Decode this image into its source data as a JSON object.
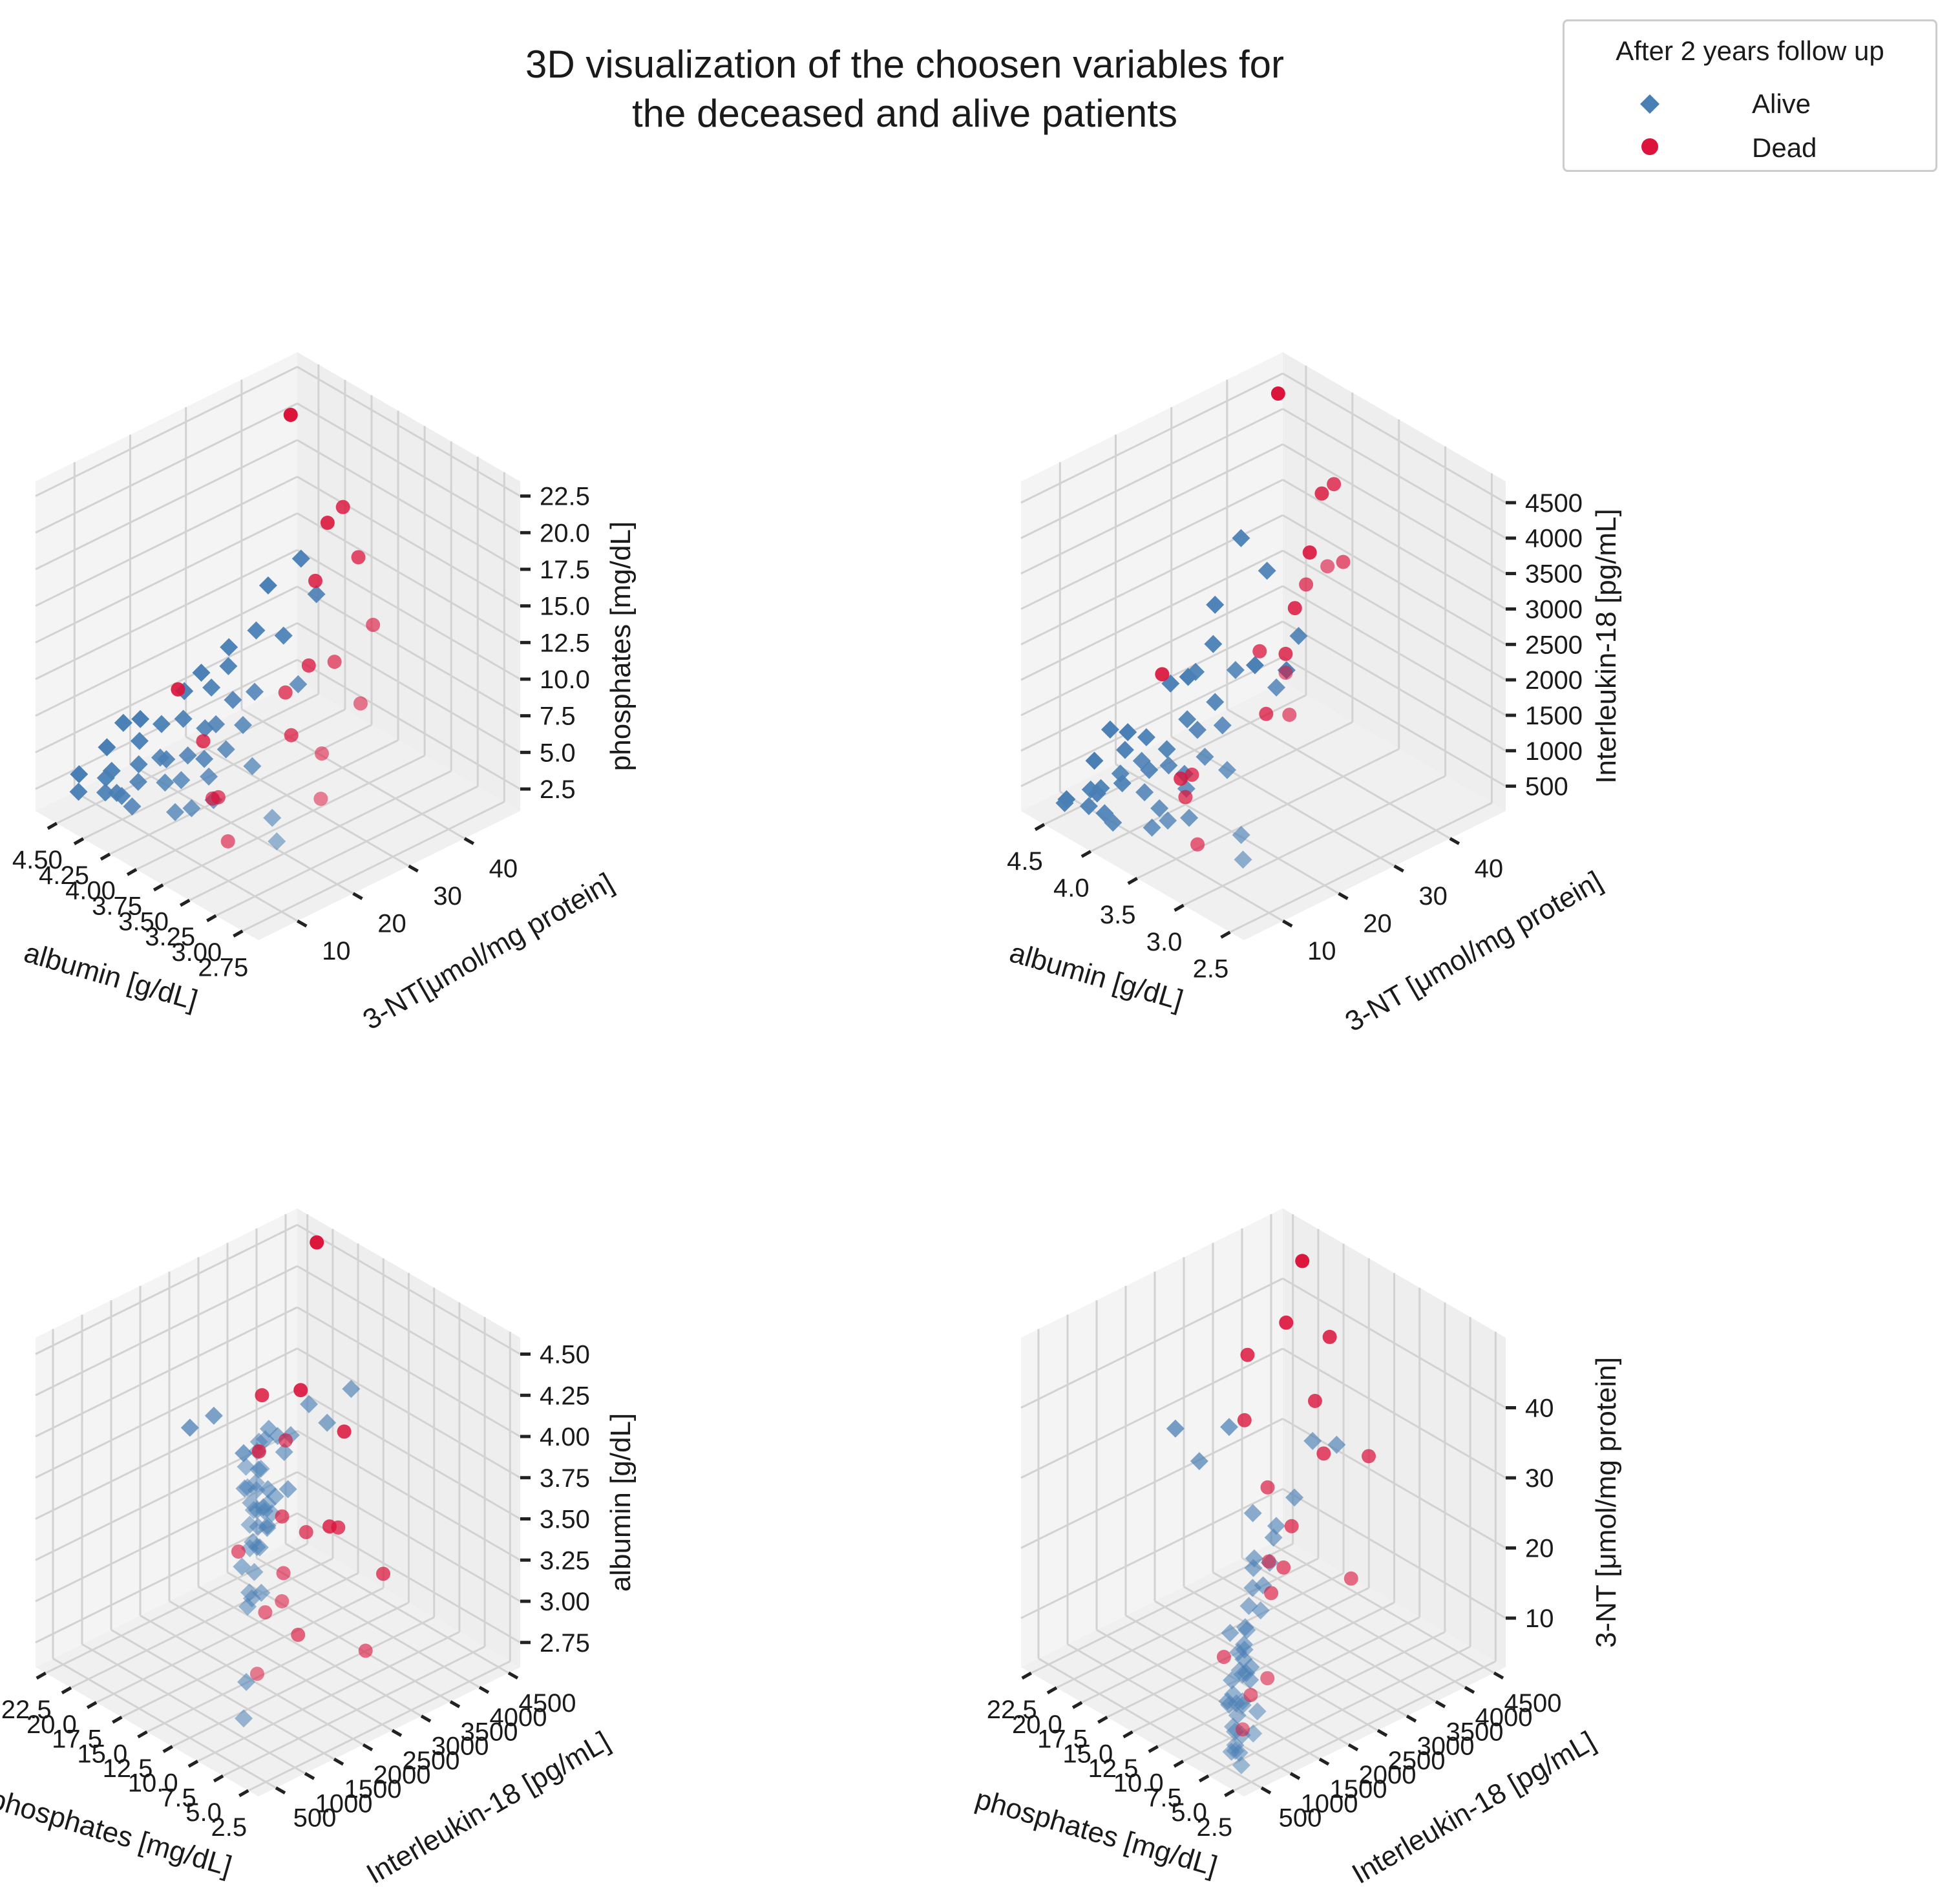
{
  "figure": {
    "title_lines": [
      "3D visualization of the choosen variables for",
      "the deceased and alive patients"
    ]
  },
  "legend": {
    "title": "After 2 years follow up",
    "entries": [
      {
        "label": "Alive",
        "marker": "diamond",
        "color": "#4a7fb5"
      },
      {
        "label": "Dead",
        "marker": "circle",
        "color": "#dc143c"
      }
    ]
  },
  "colors": {
    "alive": "#4a7fb5",
    "dead": "#dc143c",
    "grid": "#d2d2d2",
    "pane": "#f2f2f2"
  },
  "chart_data": [
    {
      "type": "scatter3d",
      "xlabel": "albumin [g/dL]",
      "ylabel": "3-NT[μmol/mg protein]",
      "zlabel": "phosphates [mg/dL]",
      "xlim": [
        2.6,
        4.7
      ],
      "ylim": [
        3,
        50
      ],
      "zlim": [
        1,
        23.5
      ],
      "xticks": [
        2.75,
        3.0,
        3.25,
        3.5,
        3.75,
        4.0,
        4.25,
        4.5
      ],
      "xtick_labels": [
        "2.75",
        "3.00",
        "3.25",
        "3.50",
        "3.75",
        "4.00",
        "4.25",
        "4.50"
      ],
      "yticks": [
        10,
        20,
        30,
        40
      ],
      "ytick_labels": [
        "10",
        "20",
        "30",
        "40"
      ],
      "zticks": [
        2.5,
        5,
        7.5,
        10,
        12.5,
        15,
        17.5,
        20,
        22.5
      ],
      "ztick_labels": [
        "2.5",
        "5.0",
        "7.5",
        "10.0",
        "12.5",
        "15.0",
        "17.5",
        "20.0",
        "22.5"
      ]
    },
    {
      "type": "scatter3d",
      "xlabel": "albumin [g/dL]",
      "ylabel": "3-NT [μmol/mg protein]",
      "zlabel": "Interleukin-18 [pg/mL]",
      "xlim": [
        2.35,
        4.75
      ],
      "ylim": [
        3,
        50
      ],
      "zlim": [
        150,
        4800
      ],
      "xticks": [
        2.5,
        3.0,
        3.5,
        4.0,
        4.5
      ],
      "xtick_labels": [
        "2.5",
        "3.0",
        "3.5",
        "4.0",
        "4.5"
      ],
      "yticks": [
        10,
        20,
        30,
        40
      ],
      "ytick_labels": [
        "10",
        "20",
        "30",
        "40"
      ],
      "zticks": [
        500,
        1000,
        1500,
        2000,
        2500,
        3000,
        3500,
        4000,
        4500
      ],
      "ztick_labels": [
        "500",
        "1000",
        "1500",
        "2000",
        "2500",
        "3000",
        "3500",
        "4000",
        "4500"
      ]
    },
    {
      "type": "scatter3d",
      "xlabel": "phosphates [mg/dL]",
      "ylabel": "Interleukin-18 [pg/mL]",
      "zlabel": "albumin [g/dL]",
      "xlim": [
        1.5,
        23.5
      ],
      "ylim": [
        200,
        4700
      ],
      "zlim": [
        2.6,
        4.6
      ],
      "xticks": [
        2.5,
        5,
        7.5,
        10,
        12.5,
        15,
        17.5,
        20,
        22.5
      ],
      "xtick_labels": [
        "2.5",
        "5.0",
        "7.5",
        "10.0",
        "12.5",
        "15.0",
        "17.5",
        "20.0",
        "22.5"
      ],
      "yticks": [
        500,
        1000,
        1500,
        2000,
        2500,
        3000,
        3500,
        4000,
        4500
      ],
      "ytick_labels": [
        "500",
        "1000",
        "1500",
        "2000",
        "2500",
        "3000",
        "3500",
        "4000",
        "4500"
      ],
      "zticks": [
        2.75,
        3.0,
        3.25,
        3.5,
        3.75,
        4.0,
        4.25,
        4.5
      ],
      "ztick_labels": [
        "2.75",
        "3.00",
        "3.25",
        "3.50",
        "3.75",
        "4.00",
        "4.25",
        "4.50"
      ]
    },
    {
      "type": "scatter3d",
      "xlabel": "phosphates [mg/dL]",
      "ylabel": "Interleukin-18 [pg/mL]",
      "zlabel": "3-NT [μmol/mg protein]",
      "xlim": [
        1.5,
        23.5
      ],
      "ylim": [
        200,
        4700
      ],
      "zlim": [
        3,
        50
      ],
      "xticks": [
        2.5,
        5,
        7.5,
        10,
        12.5,
        15,
        17.5,
        20,
        22.5
      ],
      "xtick_labels": [
        "2.5",
        "5.0",
        "7.5",
        "10.0",
        "12.5",
        "15.0",
        "17.5",
        "20.0",
        "22.5"
      ],
      "yticks": [
        500,
        1000,
        1500,
        2000,
        2500,
        3000,
        3500,
        4000,
        4500
      ],
      "ytick_labels": [
        "500",
        "1000",
        "1500",
        "2000",
        "2500",
        "3000",
        "3500",
        "4000",
        "4500"
      ],
      "zticks": [
        10,
        20,
        30,
        40
      ],
      "ztick_labels": [
        "10",
        "20",
        "30",
        "40"
      ]
    }
  ],
  "patients": {
    "fields": [
      "albumin_g_dL",
      "nt3_umol_mg_protein",
      "phosphates_mg_dL",
      "interleukin18_pg_mL"
    ],
    "alive": [
      [
        4.4,
        5,
        3.2,
        450
      ],
      [
        4.3,
        8,
        4.0,
        600
      ],
      [
        4.2,
        6,
        3.8,
        520
      ],
      [
        4.5,
        12,
        4.5,
        700
      ],
      [
        4.1,
        10,
        4.2,
        900
      ],
      [
        4.0,
        7,
        3.5,
        400
      ],
      [
        4.35,
        15,
        5.0,
        850
      ],
      [
        4.25,
        9,
        3.0,
        620
      ],
      [
        3.9,
        11,
        4.8,
        750
      ],
      [
        4.05,
        13,
        5.5,
        1000
      ],
      [
        4.45,
        14,
        6.0,
        1100
      ],
      [
        4.15,
        16,
        4.4,
        680
      ],
      [
        3.8,
        12,
        5.2,
        560
      ],
      [
        4.3,
        18,
        5.8,
        950
      ],
      [
        4.2,
        20,
        6.2,
        780
      ],
      [
        3.7,
        9,
        4.0,
        480
      ],
      [
        4.5,
        7,
        3.6,
        350
      ],
      [
        4.1,
        22,
        5.6,
        1200
      ],
      [
        3.95,
        19,
        4.7,
        660
      ],
      [
        4.4,
        24,
        6.5,
        1400
      ],
      [
        4.0,
        17,
        5.1,
        820
      ],
      [
        3.6,
        14,
        4.3,
        500
      ],
      [
        4.35,
        10,
        3.9,
        430
      ],
      [
        4.25,
        26,
        7.0,
        1600
      ],
      [
        3.85,
        21,
        5.4,
        900
      ],
      [
        4.45,
        28,
        6.8,
        1300
      ],
      [
        4.15,
        8,
        3.4,
        380
      ],
      [
        3.75,
        16,
        4.9,
        720
      ],
      [
        4.3,
        30,
        7.5,
        1800
      ],
      [
        4.05,
        23,
        5.9,
        1050
      ],
      [
        4.2,
        12,
        4.6,
        610
      ],
      [
        3.9,
        25,
        6.1,
        1150
      ],
      [
        4.5,
        18,
        5.3,
        870
      ],
      [
        4.1,
        27,
        6.6,
        1250
      ],
      [
        3.65,
        11,
        4.1,
        540
      ],
      [
        4.4,
        32,
        8.0,
        2200
      ],
      [
        4.0,
        29,
        7.2,
        1700
      ],
      [
        4.3,
        35,
        9.0,
        3100
      ],
      [
        4.2,
        38,
        8.5,
        2600
      ],
      [
        3.55,
        20,
        5.7,
        980
      ],
      [
        4.45,
        40,
        10.5,
        1000
      ],
      [
        2.9,
        12,
        4.8,
        520
      ],
      [
        3.1,
        15,
        5.0,
        600
      ],
      [
        4.1,
        42,
        11.0,
        1600
      ],
      [
        3.8,
        33,
        7.8,
        1450
      ],
      [
        4.35,
        44,
        12.0,
        850
      ]
    ],
    "dead": [
      [
        3.4,
        10,
        6.0,
        1100
      ],
      [
        3.0,
        22,
        8.5,
        2100
      ],
      [
        3.2,
        35,
        14.0,
        3600
      ],
      [
        3.6,
        40,
        16.0,
        4200
      ],
      [
        3.5,
        25,
        10.0,
        2500
      ],
      [
        2.8,
        18,
        7.0,
        3000
      ],
      [
        4.5,
        45,
        21.0,
        4600
      ],
      [
        3.3,
        30,
        12.0,
        3400
      ],
      [
        3.75,
        15,
        7.5,
        900
      ],
      [
        3.9,
        38,
        13.5,
        2300
      ],
      [
        4.1,
        44,
        15.5,
        2700
      ],
      [
        3.45,
        12,
        5.5,
        1300
      ],
      [
        2.95,
        28,
        11.0,
        4000
      ],
      [
        3.7,
        33,
        9.5,
        2000
      ],
      [
        4.25,
        20,
        8.0,
        1800
      ],
      [
        3.15,
        8,
        4.5,
        700
      ],
      [
        3.85,
        42,
        18.0,
        3800
      ],
      [
        3.55,
        27,
        6.5,
        1500
      ]
    ]
  }
}
